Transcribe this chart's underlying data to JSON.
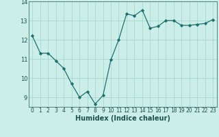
{
  "x": [
    0,
    1,
    2,
    3,
    4,
    5,
    6,
    7,
    8,
    9,
    10,
    11,
    12,
    13,
    14,
    15,
    16,
    17,
    18,
    19,
    20,
    21,
    22,
    23
  ],
  "y": [
    12.2,
    11.3,
    11.3,
    10.9,
    10.5,
    9.7,
    9.0,
    9.3,
    8.65,
    9.1,
    10.95,
    12.0,
    13.35,
    13.25,
    13.55,
    12.6,
    12.7,
    13.0,
    13.0,
    12.75,
    12.75,
    12.8,
    12.85,
    13.05
  ],
  "xlabel": "Humidex (Indice chaleur)",
  "ylim": [
    8.5,
    14.0
  ],
  "xlim": [
    -0.5,
    23.5
  ],
  "yticks": [
    9,
    10,
    11,
    12,
    13,
    14
  ],
  "xticks": [
    0,
    1,
    2,
    3,
    4,
    5,
    6,
    7,
    8,
    9,
    10,
    11,
    12,
    13,
    14,
    15,
    16,
    17,
    18,
    19,
    20,
    21,
    22,
    23
  ],
  "line_color": "#1a7070",
  "marker_color": "#1a7070",
  "bg_color": "#cceee8",
  "grid_color": "#a0d4cc",
  "axis_color": "#407070",
  "tick_color": "#1a5050",
  "xlabel_fontsize": 7.0,
  "tick_fontsize": 5.5,
  "ytick_fontsize": 6.0
}
